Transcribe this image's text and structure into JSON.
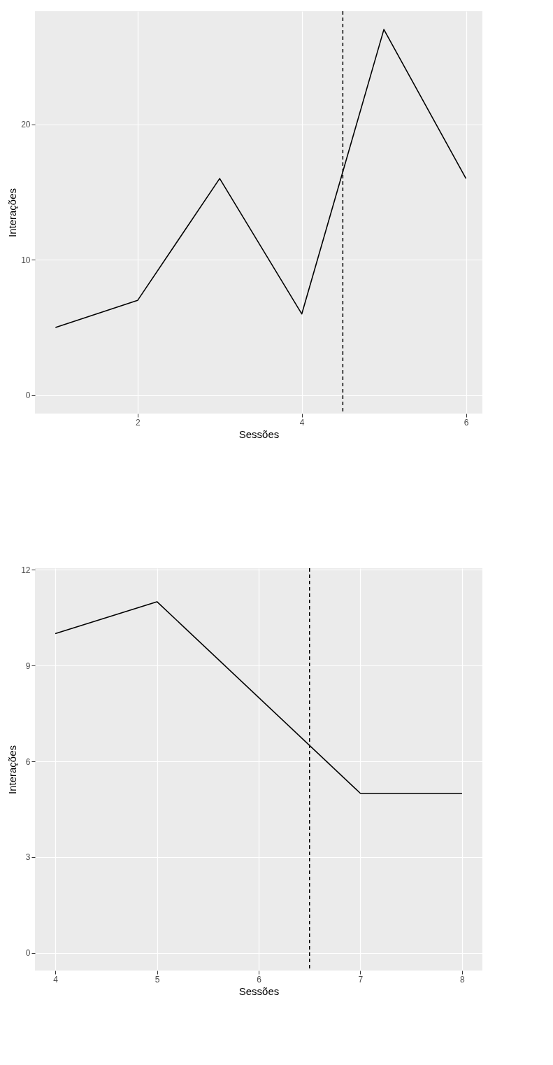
{
  "chart_data": [
    {
      "type": "line",
      "xlabel": "Sessões",
      "ylabel": "Interações",
      "x": [
        1,
        2,
        3,
        4,
        5,
        6
      ],
      "series": [
        {
          "color": "#000000",
          "values": [
            5,
            7,
            16,
            6,
            27,
            16
          ]
        }
      ],
      "xlim": [
        0.75,
        6.2
      ],
      "ylim": [
        -1.35,
        28.35
      ],
      "xticks": [
        2,
        4,
        6
      ],
      "yticks": [
        0,
        10,
        20
      ],
      "grid": true,
      "ref_lines": [
        {
          "axis": "x",
          "value": 4.5,
          "line_style": "dashed",
          "color": "#000000"
        }
      ]
    },
    {
      "type": "line",
      "xlabel": "Sessões",
      "ylabel": "Interações",
      "x": [
        4,
        5,
        7,
        8
      ],
      "series": [
        {
          "color": "#000000",
          "values": [
            10,
            11,
            5,
            5
          ]
        }
      ],
      "xlim": [
        3.8,
        8.2
      ],
      "ylim": [
        -0.55,
        12.05
      ],
      "xticks": [
        4,
        5,
        6,
        7,
        8
      ],
      "yticks": [
        0,
        3,
        6,
        9,
        12
      ],
      "grid": true,
      "ref_lines": [
        {
          "axis": "x",
          "value": 6.5,
          "line_style": "dashed",
          "color": "#000000"
        }
      ]
    }
  ]
}
